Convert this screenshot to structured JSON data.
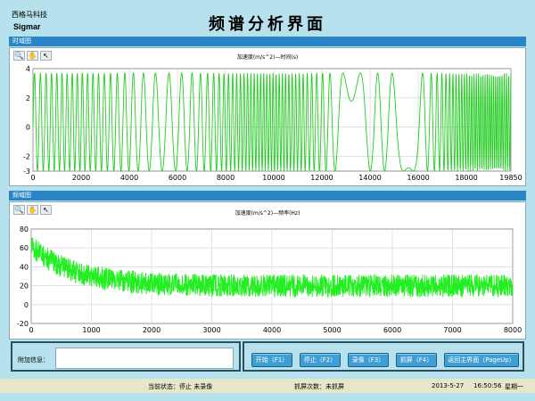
{
  "header": {
    "brand_cn": "西格马科技",
    "brand_en": "Sigmar",
    "title": "频谱分析界面"
  },
  "time_section": {
    "label": "时域图",
    "toolbar": [
      {
        "name": "zoom-icon",
        "glyph": "🔍"
      },
      {
        "name": "pan-icon",
        "glyph": "✋"
      },
      {
        "name": "pointer-icon",
        "glyph": "↖"
      }
    ]
  },
  "freq_section": {
    "label": "频域图",
    "toolbar": [
      {
        "name": "zoom-icon",
        "glyph": "🔍"
      },
      {
        "name": "pan-icon",
        "glyph": "✋"
      },
      {
        "name": "pointer-icon",
        "glyph": "↖"
      }
    ]
  },
  "chart_data": [
    {
      "type": "line",
      "title": "加速度(m/s^2)—时间(s)",
      "xlim": [
        0,
        19850
      ],
      "ylim": [
        -3,
        4
      ],
      "x_ticks": [
        0,
        2000,
        4000,
        6000,
        8000,
        10000,
        12000,
        14000,
        16000,
        18000,
        19850
      ],
      "y_ticks": [
        4,
        2,
        0,
        -2,
        -3
      ],
      "grid": true,
      "color": "#22cc22",
      "series": [
        {
          "amplitude_min": -3,
          "amplitude_max": 3.7,
          "cycles": 78
        }
      ]
    },
    {
      "type": "line",
      "title": "加速度(m/s^2)—频率(Hz)",
      "xlim": [
        0,
        8000
      ],
      "ylim": [
        -20,
        80
      ],
      "x_ticks": [
        0,
        1000,
        2000,
        3000,
        4000,
        5000,
        6000,
        7000,
        8000
      ],
      "y_ticks": [
        80,
        60,
        40,
        20,
        0,
        -20
      ],
      "grid": true,
      "color": "#22ee22",
      "series": [
        {
          "peak_at_start": 72,
          "settled_level": 20,
          "noise_range": 12
        }
      ]
    }
  ],
  "bottom": {
    "info_label": "附加信息：",
    "info_value": "",
    "buttons": [
      {
        "id": "start",
        "label": "开始（F1）"
      },
      {
        "id": "stop",
        "label": "停止（F2）"
      },
      {
        "id": "record",
        "label": "录像（F3）"
      },
      {
        "id": "capture",
        "label": "抓屏（F4）"
      },
      {
        "id": "home",
        "label": "返回主界面（PageUp）"
      }
    ]
  },
  "status": {
    "state": "当前状态：停止  未录像",
    "captures": "抓屏次数：未抓屏",
    "date": "2013-5-27",
    "time": "16:50:56",
    "weekday": "星期一"
  }
}
